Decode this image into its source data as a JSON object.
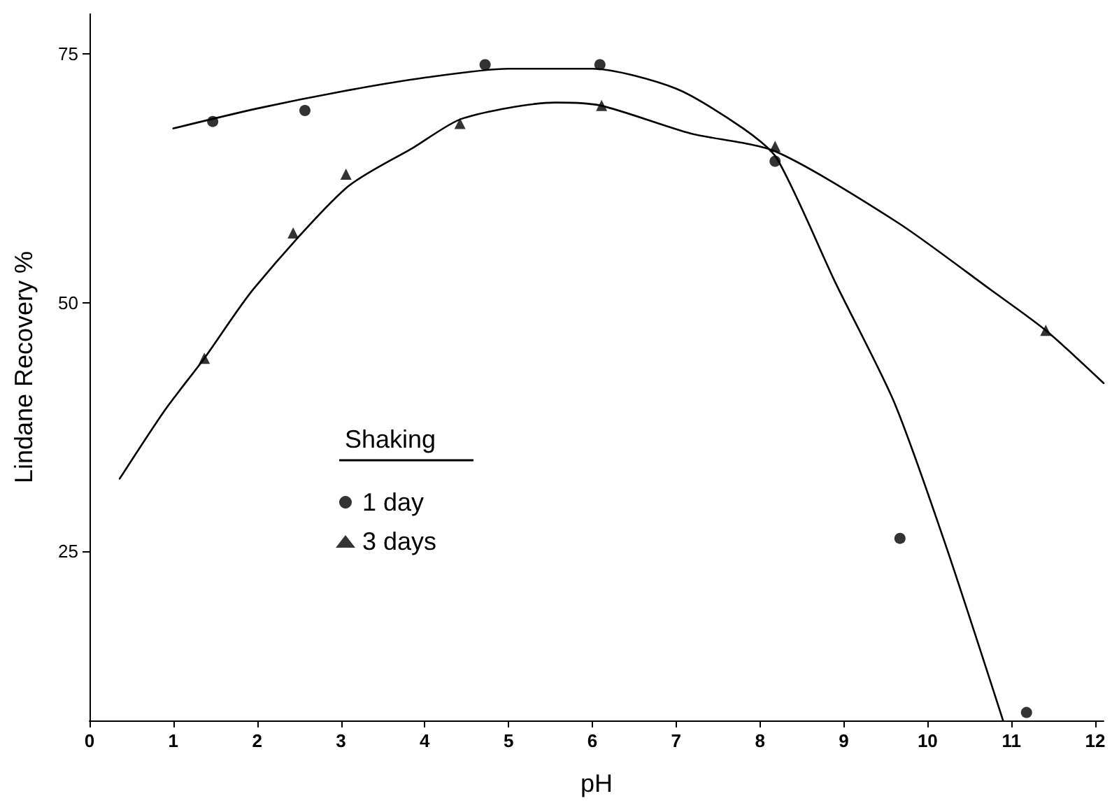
{
  "chart_data": {
    "type": "scatter",
    "xlabel": "pH",
    "ylabel": "Lindane Recovery %",
    "legend_title": "Shaking",
    "legend": "left",
    "grid": false,
    "xlim": [
      0,
      12.1
    ],
    "xticks": [
      0,
      1,
      2,
      3,
      4,
      5,
      6,
      7,
      8,
      9,
      10,
      11,
      12
    ],
    "ylim": [
      8,
      79
    ],
    "yticks": [
      25,
      50,
      75
    ],
    "series": [
      {
        "name": "1 day",
        "marker": "circle",
        "color": "#000000",
        "x": [
          1.47,
          2.57,
          4.72,
          6.09,
          8.18,
          9.67,
          11.18
        ],
        "values": [
          68.2,
          69.3,
          73.9,
          73.9,
          64.2,
          26.3,
          8.8
        ]
      },
      {
        "name": "3 days",
        "marker": "triangle",
        "color": "#000000",
        "x": [
          1.37,
          2.43,
          3.06,
          4.42,
          6.11,
          8.18,
          11.41
        ],
        "values": [
          44.4,
          57,
          62.9,
          68,
          69.8,
          65.7,
          47.2
        ]
      },
      {
        "type": "line",
        "marker": "none",
        "line_style": "solid",
        "color": "#000000",
        "x": [
          1.0,
          2,
          3,
          4,
          5,
          6,
          7,
          7.8,
          8.2,
          8.9,
          9.6,
          10.2,
          10.9
        ],
        "values": [
          67.5,
          69.5,
          71.2,
          72.6,
          73.5,
          73.5,
          71.5,
          67.5,
          64.5,
          52,
          40,
          26,
          8
        ]
      },
      {
        "type": "line",
        "marker": "none",
        "line_style": "solid",
        "color": "#000000",
        "x": [
          0.36,
          0.9,
          1.37,
          1.96,
          3.06,
          3.87,
          4.45,
          5.56,
          6.1,
          7.17,
          8.18,
          9.65,
          10.75,
          11.41,
          12.1
        ],
        "values": [
          32.3,
          39.2,
          44.4,
          51.4,
          61.5,
          65.6,
          68.5,
          70.1,
          69.8,
          67,
          65.2,
          58,
          51.3,
          47.2,
          41.9
        ]
      }
    ]
  }
}
